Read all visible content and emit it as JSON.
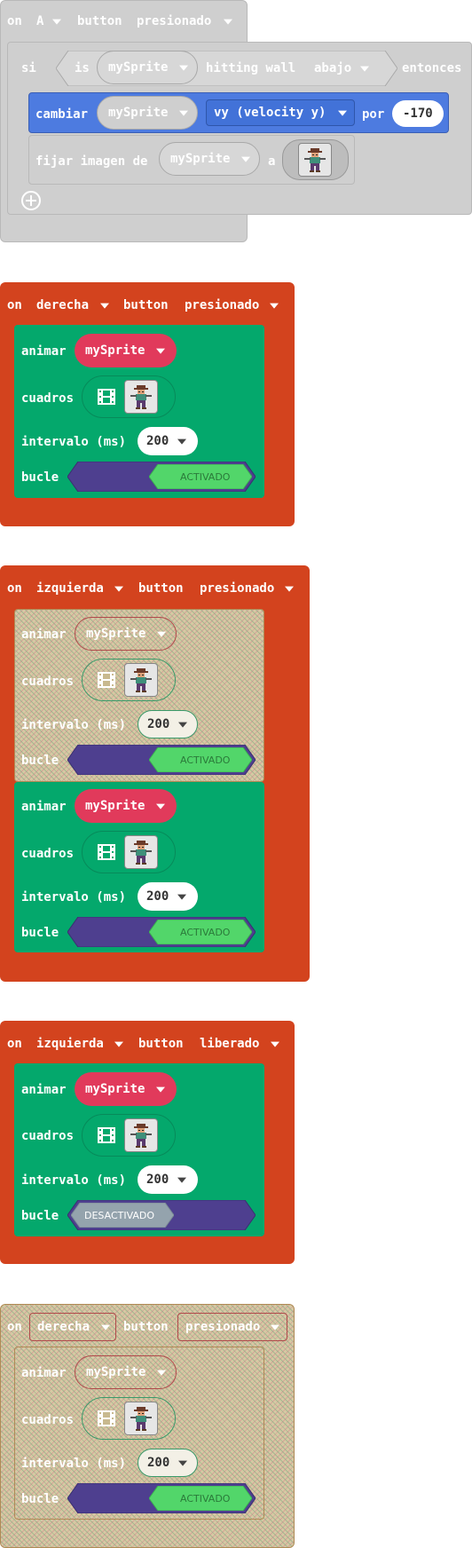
{
  "colors": {
    "event_red": "#d3431e",
    "anim_green": "#04a86c",
    "sprite_pink": "#e13a5b",
    "set_blue": "#4d7be0",
    "bool_purple": "#4e3f8f",
    "toggle_on": "#52d66a",
    "toggle_off": "#94a3ad"
  },
  "block1": {
    "on": "on",
    "button": "A",
    "button_word": "button",
    "action": "presionado",
    "si": "si",
    "is": "is",
    "sprite": "mySprite",
    "hitting_wall": "hitting wall",
    "direction": "abajo",
    "then": "entonces",
    "change": "cambiar",
    "change_sprite": "mySprite",
    "property": "vy (velocity y)",
    "by": "por",
    "amount": "-170",
    "set_image": "fijar imagen de",
    "set_sprite": "mySprite",
    "to": "a",
    "add_icon": "plus-circle-icon"
  },
  "animate_labels": {
    "animate": "animar",
    "frames": "cuadros",
    "interval": "intervalo (ms)",
    "loop": "bucle",
    "on_value": "ACTIVADO",
    "off_value": "DESACTIVADO"
  },
  "block2": {
    "on": "on",
    "button": "derecha",
    "button_word": "button",
    "action": "presionado",
    "sprite": "mySprite",
    "interval": "200"
  },
  "block3": {
    "on": "on",
    "button": "izquierda",
    "button_word": "button",
    "action": "presionado",
    "inner1": {
      "sprite": "mySprite",
      "interval": "200"
    },
    "inner2": {
      "sprite": "mySprite",
      "interval": "200"
    }
  },
  "block4": {
    "on": "on",
    "button": "izquierda",
    "button_word": "button",
    "action": "liberado",
    "sprite": "mySprite",
    "interval": "200"
  },
  "block5": {
    "on": "on",
    "button": "derecha",
    "button_word": "button",
    "action": "presionado",
    "sprite": "mySprite",
    "interval": "200"
  }
}
